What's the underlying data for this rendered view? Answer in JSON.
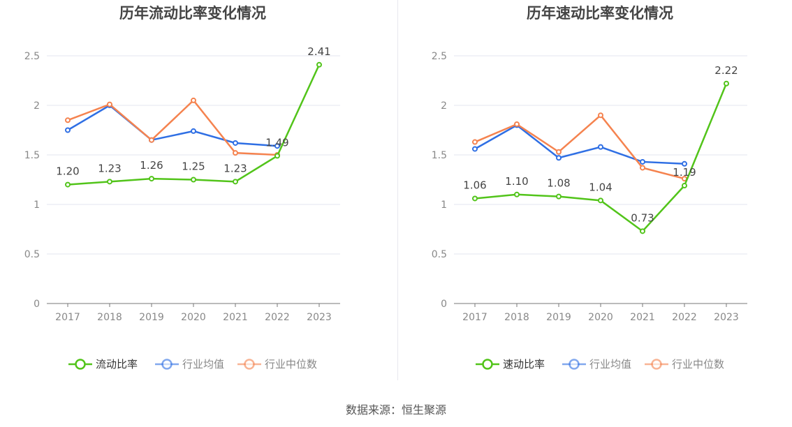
{
  "source": "数据来源：恒生聚源",
  "colors": {
    "main": "#52c41a",
    "avg": "#2f6fe4",
    "median": "#f5834f"
  },
  "chart_data": [
    {
      "type": "line",
      "title": "历年流动比率变化情况",
      "categories": [
        "2017",
        "2018",
        "2019",
        "2020",
        "2021",
        "2022",
        "2023"
      ],
      "ylim": [
        0,
        2.5
      ],
      "yticks": [
        "0",
        "0.5",
        "1",
        "1.5",
        "2",
        "2.5"
      ],
      "grid": true,
      "legend_position": "bottom",
      "series": [
        {
          "name": "流动比率",
          "values": [
            1.2,
            1.23,
            1.26,
            1.25,
            1.23,
            1.49,
            2.41
          ],
          "labels": [
            "1.20",
            "1.23",
            "1.26",
            "1.25",
            "1.23",
            "1.49",
            "2.41"
          ]
        },
        {
          "name": "行业均值",
          "values": [
            1.75,
            2.0,
            1.65,
            1.74,
            1.62,
            1.59,
            null
          ]
        },
        {
          "name": "行业中位数",
          "values": [
            1.85,
            2.01,
            1.65,
            2.05,
            1.52,
            1.5,
            null
          ]
        }
      ]
    },
    {
      "type": "line",
      "title": "历年速动比率变化情况",
      "categories": [
        "2017",
        "2018",
        "2019",
        "2020",
        "2021",
        "2022",
        "2023"
      ],
      "ylim": [
        0,
        2.5
      ],
      "yticks": [
        "0",
        "0.5",
        "1",
        "1.5",
        "2",
        "2.5"
      ],
      "grid": true,
      "legend_position": "bottom",
      "series": [
        {
          "name": "速动比率",
          "values": [
            1.06,
            1.1,
            1.08,
            1.04,
            0.73,
            1.19,
            2.22
          ],
          "labels": [
            "1.06",
            "1.10",
            "1.08",
            "1.04",
            "0.73",
            "1.19",
            "2.22"
          ]
        },
        {
          "name": "行业均值",
          "values": [
            1.56,
            1.8,
            1.47,
            1.58,
            1.43,
            1.41,
            null
          ]
        },
        {
          "name": "行业中位数",
          "values": [
            1.63,
            1.81,
            1.53,
            1.9,
            1.37,
            1.26,
            null
          ]
        }
      ]
    }
  ]
}
